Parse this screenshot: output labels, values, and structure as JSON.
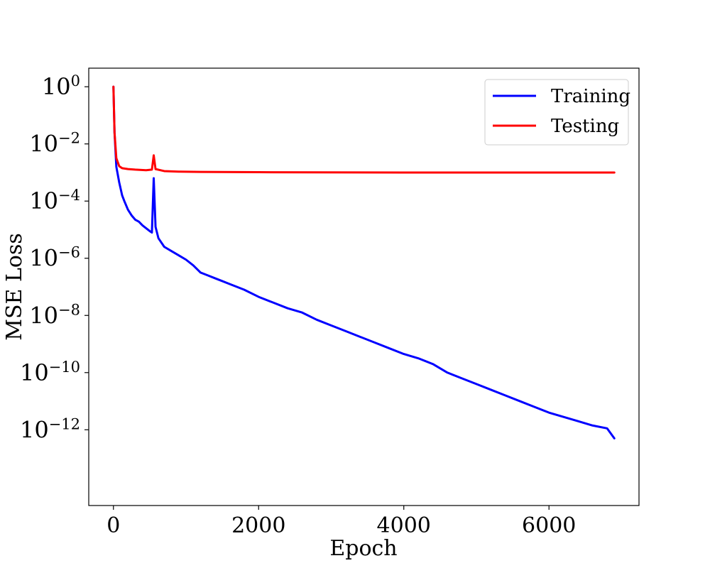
{
  "chart_data": {
    "type": "line",
    "title": "",
    "xlabel": "Epoch",
    "ylabel": "MSE Loss",
    "xlim": [
      -340,
      7240
    ],
    "ylim_log10": [
      -14.65,
      0.65
    ],
    "y_scale": "log",
    "grid": false,
    "legend_position": "top-right",
    "x_ticks": [
      0,
      2000,
      4000,
      6000
    ],
    "x_tick_labels": [
      "0",
      "2000",
      "4000",
      "6000"
    ],
    "y_ticks_log10": [
      0,
      -2,
      -4,
      -6,
      -8,
      -10,
      -12
    ],
    "y_tick_base": "10",
    "y_tick_exponents": [
      "0",
      "−2",
      "−4",
      "−6",
      "−8",
      "−10",
      "−12"
    ],
    "series": [
      {
        "name": "Training",
        "color": "#0000ff",
        "points_log10": [
          [
            0,
            0
          ],
          [
            15,
            -1.6
          ],
          [
            40,
            -2.8
          ],
          [
            80,
            -3.35
          ],
          [
            120,
            -3.8
          ],
          [
            150,
            -4.0
          ],
          [
            200,
            -4.3
          ],
          [
            250,
            -4.5
          ],
          [
            300,
            -4.65
          ],
          [
            350,
            -4.72
          ],
          [
            400,
            -4.85
          ],
          [
            450,
            -4.95
          ],
          [
            500,
            -5.05
          ],
          [
            530,
            -5.1
          ],
          [
            555,
            -3.2
          ],
          [
            580,
            -4.9
          ],
          [
            620,
            -5.3
          ],
          [
            700,
            -5.6
          ],
          [
            800,
            -5.75
          ],
          [
            900,
            -5.9
          ],
          [
            1000,
            -6.05
          ],
          [
            1100,
            -6.25
          ],
          [
            1200,
            -6.5
          ],
          [
            1300,
            -6.6
          ],
          [
            1400,
            -6.7
          ],
          [
            1500,
            -6.8
          ],
          [
            1600,
            -6.9
          ],
          [
            1700,
            -7.0
          ],
          [
            1800,
            -7.1
          ],
          [
            2000,
            -7.35
          ],
          [
            2200,
            -7.55
          ],
          [
            2400,
            -7.75
          ],
          [
            2600,
            -7.9
          ],
          [
            2800,
            -8.15
          ],
          [
            3000,
            -8.35
          ],
          [
            3200,
            -8.55
          ],
          [
            3400,
            -8.75
          ],
          [
            3600,
            -8.95
          ],
          [
            3800,
            -9.15
          ],
          [
            4000,
            -9.35
          ],
          [
            4200,
            -9.5
          ],
          [
            4400,
            -9.7
          ],
          [
            4600,
            -10.0
          ],
          [
            4800,
            -10.2
          ],
          [
            5000,
            -10.4
          ],
          [
            5200,
            -10.6
          ],
          [
            5400,
            -10.8
          ],
          [
            5600,
            -11.0
          ],
          [
            5800,
            -11.2
          ],
          [
            6000,
            -11.4
          ],
          [
            6200,
            -11.55
          ],
          [
            6400,
            -11.7
          ],
          [
            6600,
            -11.85
          ],
          [
            6800,
            -11.95
          ],
          [
            6900,
            -12.3
          ]
        ]
      },
      {
        "name": "Testing",
        "color": "#ff0000",
        "points_log10": [
          [
            0,
            0
          ],
          [
            15,
            -1.6
          ],
          [
            40,
            -2.5
          ],
          [
            80,
            -2.78
          ],
          [
            120,
            -2.85
          ],
          [
            200,
            -2.88
          ],
          [
            300,
            -2.9
          ],
          [
            450,
            -2.92
          ],
          [
            530,
            -2.9
          ],
          [
            555,
            -2.4
          ],
          [
            580,
            -2.88
          ],
          [
            700,
            -2.95
          ],
          [
            900,
            -2.97
          ],
          [
            1200,
            -2.98
          ],
          [
            2000,
            -2.99
          ],
          [
            4000,
            -3.0
          ],
          [
            6900,
            -3.0
          ]
        ]
      }
    ]
  }
}
